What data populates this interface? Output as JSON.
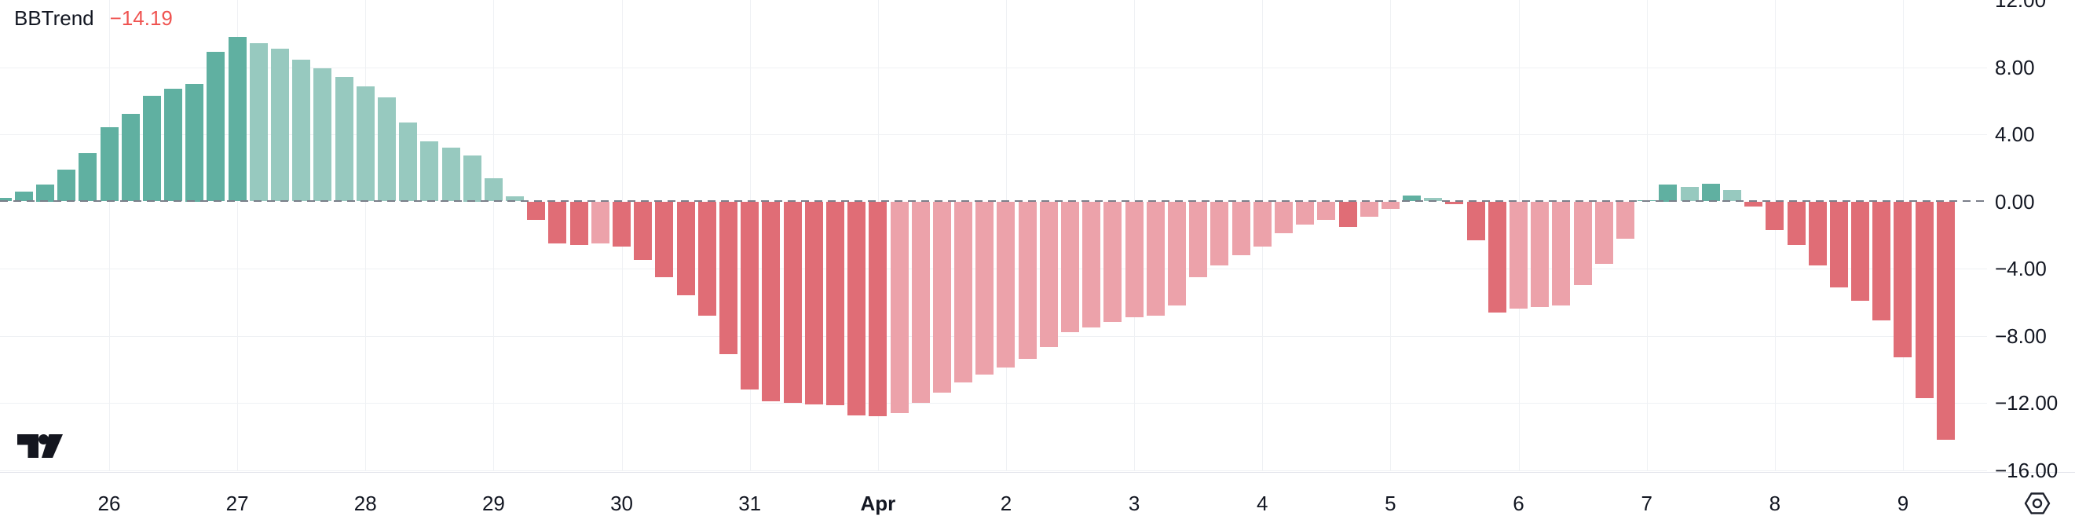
{
  "legend": {
    "indicator_title": "BBTrend",
    "value_label": "−14.19"
  },
  "colors": {
    "up_strong": "#60b0a1",
    "up_weak": "#97c9bf",
    "down_strong": "#e06d76",
    "down_weak": "#eca2aa",
    "value_text": "#ef5350",
    "axis_text": "#131722",
    "gridline": "#eff1f4",
    "zero_line": "#7b7f8a"
  },
  "y_axis": {
    "tick_labels": [
      "12.00",
      "8.00",
      "4.00",
      "0.00",
      "−4.00",
      "−8.00",
      "−12.00",
      "−16.00"
    ],
    "tick_values": [
      12,
      8,
      4,
      0,
      -4,
      -8,
      -12,
      -16
    ]
  },
  "x_axis": {
    "tick_labels": [
      "26",
      "27",
      "28",
      "29",
      "30",
      "31",
      "Apr",
      "2",
      "3",
      "4",
      "5",
      "6",
      "7",
      "8",
      "9"
    ],
    "tick_bar_index": [
      5,
      11,
      17,
      23,
      29,
      35,
      41,
      47,
      53,
      59,
      65,
      71,
      77,
      83,
      89
    ],
    "bold_label": "Apr"
  },
  "chart_data": {
    "type": "bar",
    "title": "BBTrend",
    "current_value": -14.19,
    "ylim": [
      -16,
      12
    ],
    "grid": true,
    "y_ticks": [
      12,
      8,
      4,
      0,
      -4,
      -8,
      -12,
      -16
    ],
    "x_tick_labels": [
      "26",
      "27",
      "28",
      "29",
      "30",
      "31",
      "Apr",
      "2",
      "3",
      "4",
      "5",
      "6",
      "7",
      "8",
      "9"
    ],
    "values": [
      0.2,
      0.6,
      1.0,
      1.9,
      2.9,
      4.4,
      5.2,
      6.3,
      6.7,
      7.0,
      8.9,
      9.8,
      9.45,
      9.1,
      8.45,
      7.95,
      7.4,
      6.85,
      6.2,
      4.7,
      3.6,
      3.2,
      2.75,
      1.4,
      0.3,
      -1.1,
      -2.5,
      -2.6,
      -2.5,
      -2.7,
      -3.5,
      -4.5,
      -5.6,
      -6.8,
      -9.1,
      -11.2,
      -11.9,
      -12.0,
      -12.1,
      -12.15,
      -12.75,
      -12.8,
      -12.6,
      -12.0,
      -11.4,
      -10.8,
      -10.3,
      -9.9,
      -9.4,
      -8.7,
      -7.8,
      -7.5,
      -7.2,
      -6.9,
      -6.8,
      -6.2,
      -4.5,
      -3.8,
      -3.2,
      -2.7,
      -1.9,
      -1.4,
      -1.1,
      -1.5,
      -0.9,
      -0.45,
      0.35,
      0.2,
      -0.15,
      -2.3,
      -6.6,
      -6.4,
      -6.3,
      -6.2,
      -5.0,
      -3.7,
      -2.2,
      0.05,
      1.0,
      0.85,
      1.05,
      0.7,
      -0.3,
      -1.7,
      -2.6,
      -3.8,
      -5.1,
      -5.9,
      -7.1,
      -9.3,
      -11.7,
      -14.19
    ],
    "states": [
      "us",
      "us",
      "us",
      "us",
      "us",
      "us",
      "us",
      "us",
      "us",
      "us",
      "us",
      "us",
      "uw",
      "uw",
      "uw",
      "uw",
      "uw",
      "uw",
      "uw",
      "uw",
      "uw",
      "uw",
      "uw",
      "uw",
      "uw",
      "ds",
      "ds",
      "ds",
      "dw",
      "ds",
      "ds",
      "ds",
      "ds",
      "ds",
      "ds",
      "ds",
      "ds",
      "ds",
      "ds",
      "ds",
      "ds",
      "ds",
      "dw",
      "dw",
      "dw",
      "dw",
      "dw",
      "dw",
      "dw",
      "dw",
      "dw",
      "dw",
      "dw",
      "dw",
      "dw",
      "dw",
      "dw",
      "dw",
      "dw",
      "dw",
      "dw",
      "dw",
      "dw",
      "ds",
      "dw",
      "dw",
      "us",
      "uw",
      "ds",
      "ds",
      "ds",
      "dw",
      "dw",
      "dw",
      "dw",
      "dw",
      "dw",
      "us",
      "us",
      "uw",
      "us",
      "uw",
      "ds",
      "ds",
      "ds",
      "ds",
      "ds",
      "ds",
      "ds",
      "ds",
      "ds",
      "ds"
    ],
    "legend_position": "top-left",
    "y_axis_side": "right"
  }
}
